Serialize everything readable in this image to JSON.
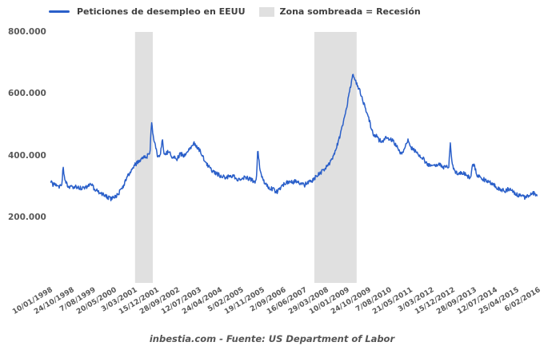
{
  "legend": {
    "series_label": "Peticiones de desempleo en EEUU",
    "band_label": "Zona sombreada = Recesión",
    "series_color": "#2a5fc9",
    "band_color": "#e0e0e0"
  },
  "footer": {
    "text": "inbestia.com - Fuente: US Department of Labor"
  },
  "chart_data": {
    "type": "line",
    "title": "",
    "grid": false,
    "legend_position": "top",
    "x_range_years": [
      1998.03,
      2016.1
    ],
    "x_tick_labels": [
      "10/01/1998",
      "24/10/1998",
      "7/08/1999",
      "20/05/2000",
      "3/03/2001",
      "15/12/2001",
      "28/09/2002",
      "12/07/2003",
      "24/04/2004",
      "5/02/2005",
      "19/11/2005",
      "2/09/2006",
      "16/06/2007",
      "29/03/2008",
      "10/01/2009",
      "24/10/2009",
      "7/08/2010",
      "21/05/2011",
      "3/03/2012",
      "15/12/2012",
      "28/09/2013",
      "12/07/2014",
      "25/04/2015",
      "6/02/2016"
    ],
    "y_ticks": [
      {
        "label": "800.000",
        "value": 800000
      },
      {
        "label": "600.000",
        "value": 600000
      },
      {
        "label": "400.000",
        "value": 400000
      },
      {
        "label": "200.000",
        "value": 200000
      }
    ],
    "recession_bands": [
      {
        "start_year": 2001.17,
        "end_year": 2001.83
      },
      {
        "start_year": 2007.82,
        "end_year": 2009.39
      }
    ],
    "series": [
      {
        "name": "Peticiones de desempleo en EEUU",
        "color": "#2a5fc9",
        "value_unit": "weekly claims (thousands)",
        "sampling": "weekly",
        "noise_amplitude": 7,
        "anchors": [
          [
            1998.03,
            322
          ],
          [
            1998.12,
            310
          ],
          [
            1998.22,
            306
          ],
          [
            1998.32,
            300
          ],
          [
            1998.42,
            310
          ],
          [
            1998.46,
            316
          ],
          [
            1998.5,
            368
          ],
          [
            1998.54,
            332
          ],
          [
            1998.65,
            306
          ],
          [
            1998.8,
            300
          ],
          [
            1999.0,
            302
          ],
          [
            1999.2,
            297
          ],
          [
            1999.4,
            301
          ],
          [
            1999.55,
            309
          ],
          [
            1999.7,
            290
          ],
          [
            1999.9,
            281
          ],
          [
            2000.1,
            270
          ],
          [
            2000.25,
            262
          ],
          [
            2000.4,
            268
          ],
          [
            2000.55,
            280
          ],
          [
            2000.7,
            298
          ],
          [
            2000.85,
            328
          ],
          [
            2001.0,
            352
          ],
          [
            2001.15,
            370
          ],
          [
            2001.3,
            386
          ],
          [
            2001.45,
            394
          ],
          [
            2001.6,
            400
          ],
          [
            2001.72,
            406
          ],
          [
            2001.78,
            517
          ],
          [
            2001.84,
            465
          ],
          [
            2001.92,
            437
          ],
          [
            2002.0,
            405
          ],
          [
            2002.1,
            398
          ],
          [
            2002.18,
            458
          ],
          [
            2002.26,
            405
          ],
          [
            2002.4,
            415
          ],
          [
            2002.55,
            400
          ],
          [
            2002.7,
            390
          ],
          [
            2002.85,
            408
          ],
          [
            2003.0,
            403
          ],
          [
            2003.1,
            420
          ],
          [
            2003.2,
            425
          ],
          [
            2003.35,
            442
          ],
          [
            2003.5,
            428
          ],
          [
            2003.65,
            405
          ],
          [
            2003.8,
            378
          ],
          [
            2003.95,
            360
          ],
          [
            2004.1,
            347
          ],
          [
            2004.25,
            341
          ],
          [
            2004.4,
            336
          ],
          [
            2004.55,
            331
          ],
          [
            2004.7,
            338
          ],
          [
            2004.85,
            335
          ],
          [
            2005.0,
            324
          ],
          [
            2005.15,
            331
          ],
          [
            2005.3,
            332
          ],
          [
            2005.45,
            324
          ],
          [
            2005.6,
            318
          ],
          [
            2005.67,
            321
          ],
          [
            2005.72,
            433
          ],
          [
            2005.79,
            364
          ],
          [
            2005.87,
            331
          ],
          [
            2005.96,
            315
          ],
          [
            2006.1,
            300
          ],
          [
            2006.3,
            293
          ],
          [
            2006.45,
            283
          ],
          [
            2006.6,
            305
          ],
          [
            2006.75,
            312
          ],
          [
            2006.9,
            318
          ],
          [
            2007.0,
            315
          ],
          [
            2007.15,
            321
          ],
          [
            2007.3,
            309
          ],
          [
            2007.45,
            307
          ],
          [
            2007.6,
            317
          ],
          [
            2007.75,
            322
          ],
          [
            2007.9,
            335
          ],
          [
            2008.05,
            347
          ],
          [
            2008.2,
            361
          ],
          [
            2008.35,
            373
          ],
          [
            2008.5,
            391
          ],
          [
            2008.6,
            419
          ],
          [
            2008.7,
            446
          ],
          [
            2008.8,
            477
          ],
          [
            2008.9,
            513
          ],
          [
            2009.0,
            549
          ],
          [
            2009.1,
            598
          ],
          [
            2009.18,
            637
          ],
          [
            2009.25,
            665
          ],
          [
            2009.32,
            649
          ],
          [
            2009.4,
            634
          ],
          [
            2009.5,
            614
          ],
          [
            2009.6,
            586
          ],
          [
            2009.7,
            559
          ],
          [
            2009.8,
            531
          ],
          [
            2009.9,
            503
          ],
          [
            2010.0,
            470
          ],
          [
            2010.12,
            465
          ],
          [
            2010.22,
            453
          ],
          [
            2010.32,
            447
          ],
          [
            2010.45,
            461
          ],
          [
            2010.6,
            456
          ],
          [
            2010.75,
            449
          ],
          [
            2010.9,
            428
          ],
          [
            2011.0,
            412
          ],
          [
            2011.1,
            409
          ],
          [
            2011.2,
            438
          ],
          [
            2011.3,
            456
          ],
          [
            2011.42,
            428
          ],
          [
            2011.55,
            419
          ],
          [
            2011.7,
            404
          ],
          [
            2011.85,
            394
          ],
          [
            2012.0,
            373
          ],
          [
            2012.15,
            367
          ],
          [
            2012.3,
            372
          ],
          [
            2012.45,
            376
          ],
          [
            2012.6,
            362
          ],
          [
            2012.75,
            366
          ],
          [
            2012.81,
            364
          ],
          [
            2012.86,
            448
          ],
          [
            2012.93,
            371
          ],
          [
            2013.05,
            352
          ],
          [
            2013.2,
            343
          ],
          [
            2013.35,
            347
          ],
          [
            2013.5,
            336
          ],
          [
            2013.6,
            327
          ],
          [
            2013.71,
            379
          ],
          [
            2013.85,
            341
          ],
          [
            2014.0,
            331
          ],
          [
            2014.15,
            323
          ],
          [
            2014.3,
            317
          ],
          [
            2014.45,
            311
          ],
          [
            2014.6,
            299
          ],
          [
            2014.75,
            291
          ],
          [
            2014.9,
            289
          ],
          [
            2015.05,
            296
          ],
          [
            2015.2,
            283
          ],
          [
            2015.35,
            276
          ],
          [
            2015.5,
            270
          ],
          [
            2015.65,
            267
          ],
          [
            2015.8,
            272
          ],
          [
            2015.95,
            281
          ],
          [
            2016.1,
            266
          ]
        ]
      }
    ]
  }
}
